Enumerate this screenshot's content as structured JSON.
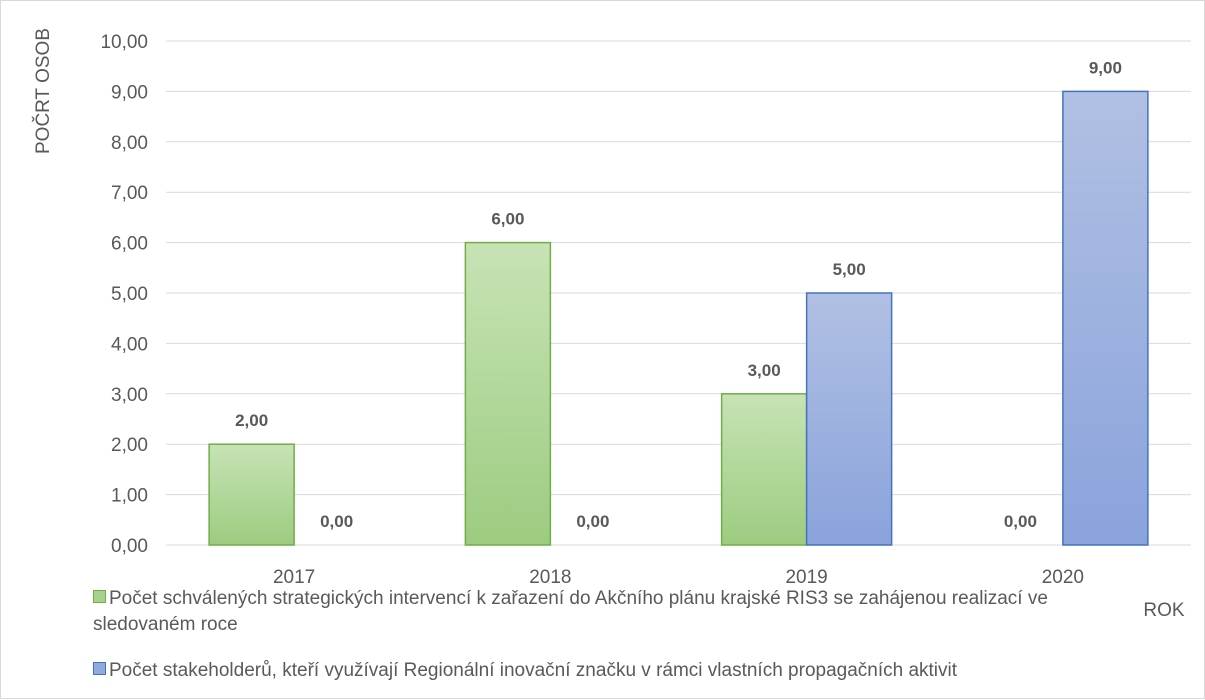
{
  "chart_data": {
    "type": "bar",
    "title": "",
    "xlabel": "ROK",
    "ylabel": "POČRT OSOB",
    "ylim": [
      0,
      10
    ],
    "yticks": [
      "0,00",
      "1,00",
      "2,00",
      "3,00",
      "4,00",
      "5,00",
      "6,00",
      "7,00",
      "8,00",
      "9,00",
      "10,00"
    ],
    "categories": [
      "2017",
      "2018",
      "2019",
      "2020"
    ],
    "grid": true,
    "legend_position": "bottom",
    "series": [
      {
        "name": "Počet schválených strategických intervencí k zařazení do Akčního plánu krajské RIS3 se zahájenou realizací ve sledovaném roce",
        "values": [
          2,
          6,
          3,
          0
        ],
        "labels": [
          "2,00",
          "6,00",
          "3,00",
          "0,00"
        ],
        "color": "#a9d18e",
        "border": "#70ad47"
      },
      {
        "name": "Počet stakeholderů, kteří využívají Regionální inovační značku v rámci vlastních propagačních aktivit",
        "values": [
          0,
          0,
          5,
          9
        ],
        "labels": [
          "0,00",
          "0,00",
          "5,00",
          "9,00"
        ],
        "color": "#8faadc",
        "border": "#4472c4"
      }
    ]
  }
}
